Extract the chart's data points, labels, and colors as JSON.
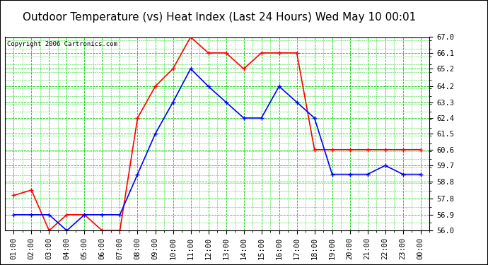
{
  "title": "Outdoor Temperature (vs) Heat Index (Last 24 Hours) Wed May 10 00:01",
  "copyright": "Copyright 2006 Cartronics.com",
  "x_labels": [
    "01:00",
    "02:00",
    "03:00",
    "04:00",
    "05:00",
    "06:00",
    "07:00",
    "08:00",
    "09:00",
    "10:00",
    "11:00",
    "12:00",
    "13:00",
    "14:00",
    "15:00",
    "16:00",
    "17:00",
    "18:00",
    "19:00",
    "20:00",
    "21:00",
    "22:00",
    "23:00",
    "00:00"
  ],
  "red_data": [
    58.0,
    58.3,
    56.0,
    56.9,
    56.9,
    56.0,
    56.0,
    62.4,
    64.2,
    65.2,
    67.0,
    66.1,
    66.1,
    65.2,
    66.1,
    66.1,
    66.1,
    60.6,
    60.6,
    60.6,
    60.6,
    60.6,
    60.6,
    60.6
  ],
  "blue_data": [
    56.9,
    56.9,
    56.9,
    56.0,
    56.9,
    56.9,
    56.9,
    59.2,
    61.5,
    63.3,
    65.2,
    64.2,
    63.3,
    62.4,
    62.4,
    64.2,
    63.3,
    62.4,
    59.2,
    59.2,
    59.2,
    59.7,
    59.2,
    59.2
  ],
  "red_color": "#ff0000",
  "blue_color": "#0000ff",
  "bg_color": "#ffffff",
  "plot_bg": "#ffffff",
  "grid_color": "#00cc00",
  "ymin": 56.0,
  "ymax": 67.0,
  "yticks": [
    56.0,
    56.9,
    57.8,
    58.8,
    59.7,
    60.6,
    61.5,
    62.4,
    63.3,
    64.2,
    65.2,
    66.1,
    67.0
  ],
  "title_fontsize": 11,
  "copyright_fontsize": 6.5,
  "tick_fontsize": 7.5
}
